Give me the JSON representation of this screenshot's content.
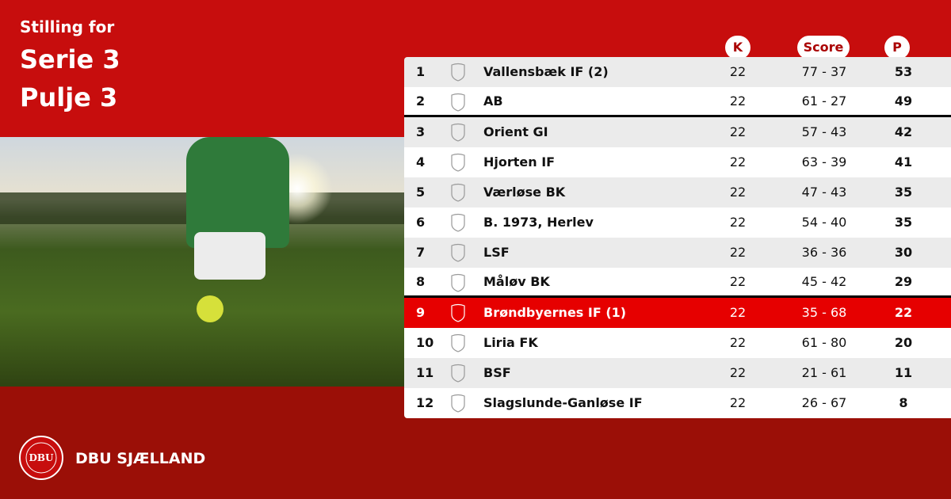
{
  "heading": {
    "line1": "Stilling for",
    "line2": "Serie 3",
    "line3": "Pulje 3"
  },
  "columns": {
    "k": "K",
    "score": "Score",
    "p": "P"
  },
  "rows": [
    {
      "pos": "1",
      "team": "Vallensbæk IF (2)",
      "k": "22",
      "score": "77 - 37",
      "p": "53"
    },
    {
      "pos": "2",
      "team": "AB",
      "k": "22",
      "score": "61 - 27",
      "p": "49"
    },
    {
      "pos": "3",
      "team": "Orient GI",
      "k": "22",
      "score": "57 - 43",
      "p": "42"
    },
    {
      "pos": "4",
      "team": "Hjorten IF",
      "k": "22",
      "score": "63 - 39",
      "p": "41"
    },
    {
      "pos": "5",
      "team": "Værløse BK",
      "k": "22",
      "score": "47 - 43",
      "p": "35"
    },
    {
      "pos": "6",
      "team": "B. 1973, Herlev",
      "k": "22",
      "score": "54 - 40",
      "p": "35"
    },
    {
      "pos": "7",
      "team": "LSF",
      "k": "22",
      "score": "36 - 36",
      "p": "30"
    },
    {
      "pos": "8",
      "team": "Måløv BK",
      "k": "22",
      "score": "45 - 42",
      "p": "29"
    },
    {
      "pos": "9",
      "team": "Brøndbyernes IF (1)",
      "k": "22",
      "score": "35 - 68",
      "p": "22"
    },
    {
      "pos": "10",
      "team": "Liria FK",
      "k": "22",
      "score": "61 - 80",
      "p": "20"
    },
    {
      "pos": "11",
      "team": "BSF",
      "k": "22",
      "score": "21 - 61",
      "p": "11"
    },
    {
      "pos": "12",
      "team": "Slagslunde-Ganløse IF",
      "k": "22",
      "score": "26 - 67",
      "p": "8"
    }
  ],
  "highlight_row": "9",
  "footer": {
    "brand": "DBU SJÆLLAND",
    "logo_text": "DANSK BOLDSPIL-UNION 1889 DBU"
  },
  "colors": {
    "primary": "#c70d0d",
    "footer": "#9b0f07",
    "highlight": "#e60000"
  }
}
